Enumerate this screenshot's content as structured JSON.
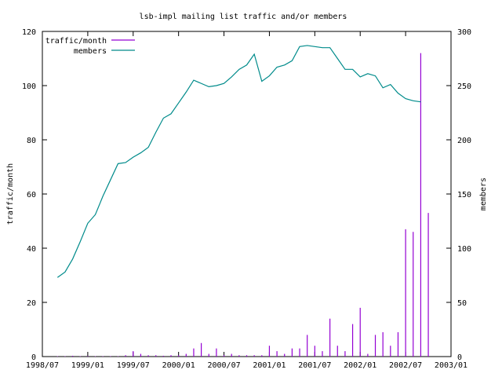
{
  "chart_data": {
    "type": "line",
    "title": "lsb-impl mailing list traffic and/or members",
    "xlabel": "",
    "ylabel_left": "traffic/month",
    "ylabel_right": "members",
    "x_ticks": [
      "1998/07",
      "1999/01",
      "1999/07",
      "2000/01",
      "2000/07",
      "2001/01",
      "2001/07",
      "2002/01",
      "2002/07",
      "2003/01"
    ],
    "xlim_months": [
      0,
      54
    ],
    "ylim_left": [
      0,
      120
    ],
    "yticks_left": [
      0,
      20,
      40,
      60,
      80,
      100,
      120
    ],
    "ylim_right": [
      0,
      300
    ],
    "yticks_right": [
      0,
      50,
      100,
      150,
      200,
      250,
      300
    ],
    "legend_position": "top-left",
    "grid": false,
    "x_unit": "months since 1998/07",
    "series": [
      {
        "name": "traffic/month",
        "style": "impulses",
        "axis": "left",
        "color": "#9400d3",
        "points": [
          [
            2,
            0
          ],
          [
            3,
            0
          ],
          [
            4,
            0.3
          ],
          [
            5,
            0
          ],
          [
            6,
            0.2
          ],
          [
            7,
            0
          ],
          [
            8,
            0
          ],
          [
            9,
            0
          ],
          [
            10,
            0
          ],
          [
            11,
            0.5
          ],
          [
            12,
            2
          ],
          [
            13,
            1
          ],
          [
            14,
            0.5
          ],
          [
            15,
            0.5
          ],
          [
            16,
            0.3
          ],
          [
            17,
            0.5
          ],
          [
            18,
            0.5
          ],
          [
            19,
            1
          ],
          [
            20,
            3
          ],
          [
            21,
            5
          ],
          [
            22,
            1
          ],
          [
            23,
            3
          ],
          [
            24,
            0.5
          ],
          [
            25,
            1
          ],
          [
            26,
            0.5
          ],
          [
            27,
            0.5
          ],
          [
            28,
            0.5
          ],
          [
            29,
            0.5
          ],
          [
            30,
            4
          ],
          [
            31,
            2
          ],
          [
            32,
            1
          ],
          [
            33,
            3
          ],
          [
            34,
            3
          ],
          [
            35,
            8
          ],
          [
            36,
            4
          ],
          [
            37,
            2
          ],
          [
            38,
            14
          ],
          [
            39,
            4
          ],
          [
            40,
            2
          ],
          [
            41,
            12
          ],
          [
            42,
            18
          ],
          [
            43,
            1
          ],
          [
            44,
            8
          ],
          [
            45,
            9
          ],
          [
            46,
            4
          ],
          [
            47,
            9
          ],
          [
            48,
            47
          ],
          [
            49,
            46
          ],
          [
            50,
            112
          ],
          [
            51,
            53
          ]
        ]
      },
      {
        "name": "members",
        "style": "line",
        "axis": "right",
        "color": "#008b8b",
        "points": [
          [
            2,
            73
          ],
          [
            3,
            78
          ],
          [
            4,
            90
          ],
          [
            5,
            106
          ],
          [
            6,
            123
          ],
          [
            7,
            131
          ],
          [
            8,
            148
          ],
          [
            9,
            163
          ],
          [
            10,
            178
          ],
          [
            11,
            179
          ],
          [
            12,
            184
          ],
          [
            13,
            188
          ],
          [
            14,
            193
          ],
          [
            15,
            207
          ],
          [
            16,
            220
          ],
          [
            17,
            224
          ],
          [
            18,
            234
          ],
          [
            19,
            244
          ],
          [
            20,
            255
          ],
          [
            21,
            252
          ],
          [
            22,
            249
          ],
          [
            23,
            250
          ],
          [
            24,
            252
          ],
          [
            25,
            258
          ],
          [
            26,
            265
          ],
          [
            27,
            269
          ],
          [
            28,
            279
          ],
          [
            29,
            254
          ],
          [
            30,
            259
          ],
          [
            31,
            267
          ],
          [
            32,
            269
          ],
          [
            33,
            273
          ],
          [
            34,
            286
          ],
          [
            35,
            287
          ],
          [
            36,
            286
          ],
          [
            37,
            285
          ],
          [
            38,
            285
          ],
          [
            39,
            275
          ],
          [
            40,
            265
          ],
          [
            41,
            265
          ],
          [
            42,
            258
          ],
          [
            43,
            261
          ],
          [
            44,
            259
          ],
          [
            45,
            248
          ],
          [
            46,
            251
          ],
          [
            47,
            243
          ],
          [
            48,
            238
          ],
          [
            49,
            236
          ],
          [
            50,
            235
          ]
        ]
      }
    ]
  }
}
